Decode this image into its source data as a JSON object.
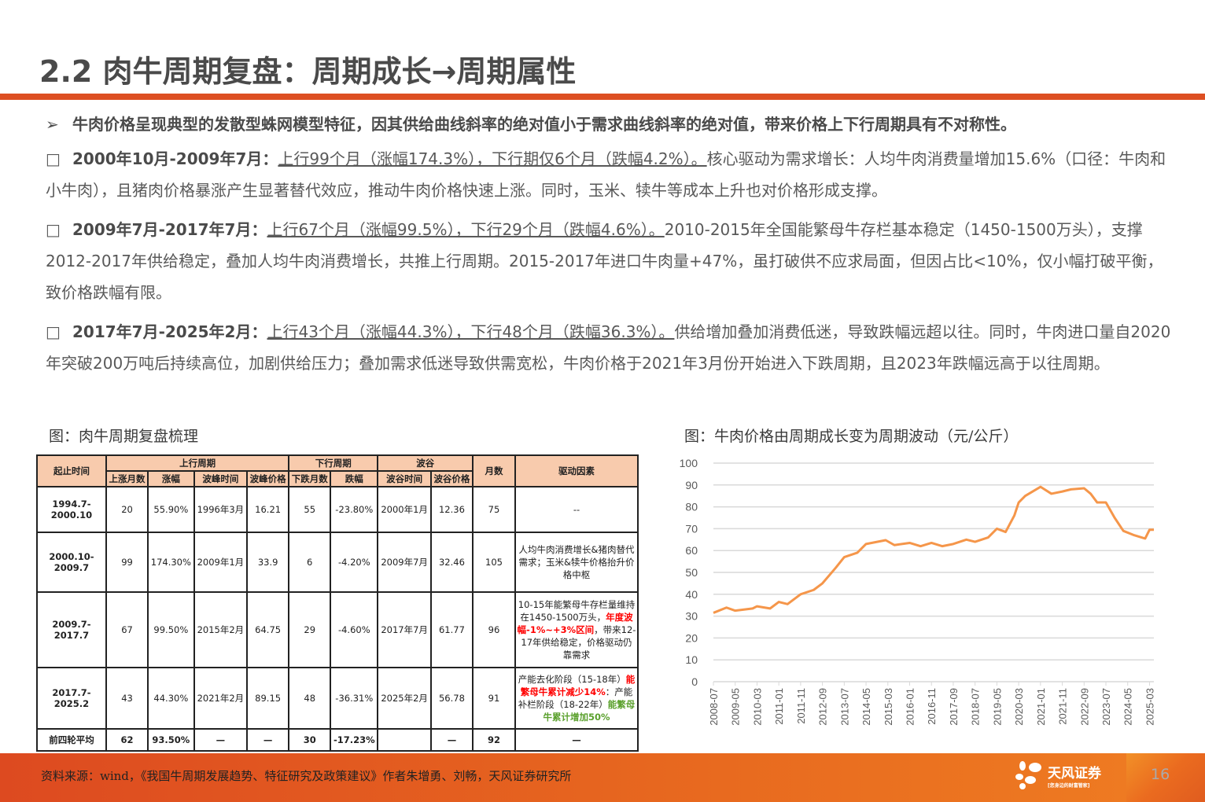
{
  "header": {
    "title": "2.2 肉牛周期复盘：周期成长→周期属性",
    "accent": "#dd4f22"
  },
  "bullets": {
    "intro": "牛肉价格呈现典型的发散型蛛网模型特征，因其供给曲线斜率的绝对值小于需求曲线斜率的绝对值，带来价格上下行周期具有不对称性。",
    "items": [
      {
        "lead": "2000年10月-2009年7月：",
        "underline": "上行99个月（涨幅174.3%），下行期仅6个月（跌幅4.2%）。",
        "rest": "核心驱动为需求增长：人均牛肉消费量增加15.6%（口径：牛肉和小牛肉），且猪肉价格暴涨产生显著替代效应，推动牛肉价格快速上涨。同时，玉米、犊牛等成本上升也对价格形成支撑。"
      },
      {
        "lead": "2009年7月-2017年7月：",
        "underline": "上行67个月（涨幅99.5%），下行29个月（跌幅4.6%）。",
        "rest": "2010-2015年全国能繁母牛存栏基本稳定（1450-1500万头），支撑2012-2017年供给稳定，叠加人均牛肉消费增长，共推上行周期。2015-2017年进口牛肉量+47%，虽打破供不应求局面，但因占比<10%，仅小幅打破平衡，致价格跌幅有限。"
      },
      {
        "lead": "2017年7月-2025年2月：",
        "underline": "上行43个月（涨幅44.3%），下行48个月（跌幅36.3%）。",
        "rest": "供给增加叠加消费低迷，导致跌幅远超以往。同时，牛肉进口量自2020年突破200万吨后持续高位，加剧供给压力；叠加需求低迷导致供需宽松，牛肉价格于2021年3月份开始进入下跌周期，且2023年跌幅远高于以往周期。"
      }
    ]
  },
  "table": {
    "caption": "图：肉牛周期复盘梳理",
    "group_headers": [
      "起止时间",
      "上行周期",
      "下行周期",
      "波谷",
      "月数",
      "驱动因素"
    ],
    "sub_headers": [
      "上涨月数",
      "涨幅",
      "波峰时间",
      "波峰价格",
      "下跌月数",
      "跌幅",
      "波谷时间",
      "波谷价格"
    ],
    "rows": [
      {
        "period": "1994.7-2000.10",
        "up_m": "20",
        "up_pct": "55.90%",
        "peak_t": "1996年3月",
        "peak_p": "16.21",
        "dn_m": "55",
        "dn_pct": "-23.80%",
        "trough_t": "2000年1月",
        "trough_p": "12.36",
        "months": "75",
        "driver": "--"
      },
      {
        "period": "2000.10-2009.7",
        "up_m": "99",
        "up_pct": "174.30%",
        "peak_t": "2009年1月",
        "peak_p": "33.9",
        "dn_m": "6",
        "dn_pct": "-4.20%",
        "trough_t": "2009年7月",
        "trough_p": "32.46",
        "months": "105",
        "driver": "人均牛肉消费增长&猪肉替代需求；玉米&犊牛价格抬升价格中枢"
      },
      {
        "period": "2009.7-2017.7",
        "up_m": "67",
        "up_pct": "99.50%",
        "peak_t": "2015年2月",
        "peak_p": "64.75",
        "dn_m": "29",
        "dn_pct": "-4.60%",
        "trough_t": "2017年7月",
        "trough_p": "61.77",
        "months": "96",
        "driver_a": "10-15年能繁母牛存栏量维持在1450-1500万头，",
        "driver_red": "年度波幅-1%~+3%区间",
        "driver_b": "，带来12-17年供给稳定，价格驱动仍靠需求"
      },
      {
        "period": "2017.7-2025.2",
        "up_m": "43",
        "up_pct": "44.30%",
        "peak_t": "2021年2月",
        "peak_p": "89.15",
        "dn_m": "48",
        "dn_pct": "-36.31%",
        "trough_t": "2025年2月",
        "trough_p": "56.78",
        "months": "91",
        "driver_a": "产能去化阶段（15-18年）",
        "driver_red": "能繁母牛累计减少14%",
        "driver_b": "：产能补栏阶段（18-22年）",
        "driver_green": "能繁母牛累计增加50%"
      },
      {
        "period": "前四轮平均",
        "up_m": "62",
        "up_pct": "93.50%",
        "peak_t": "—",
        "peak_p": "—",
        "dn_m": "30",
        "dn_pct": "-17.23%",
        "trough_t": "",
        "trough_p": "—",
        "months": "92",
        "driver": "—"
      }
    ]
  },
  "chart_data": {
    "type": "line",
    "title": "图：牛肉价格由周期成长变为周期波动（元/公斤）",
    "xlabel": "",
    "ylabel": "元/公斤",
    "ylim": [
      0,
      100
    ],
    "yticks": [
      0,
      10,
      20,
      30,
      40,
      50,
      60,
      70,
      80,
      90,
      100
    ],
    "xticks": [
      "2008-07",
      "2009-05",
      "2010-03",
      "2011-01",
      "2011-11",
      "2012-09",
      "2013-07",
      "2014-05",
      "2015-03",
      "2016-01",
      "2016-11",
      "2017-09",
      "2018-07",
      "2019-05",
      "2020-03",
      "2021-01",
      "2021-11",
      "2022-09",
      "2023-07",
      "2024-05",
      "2025-03"
    ],
    "series": [
      {
        "name": "牛肉价格",
        "color": "#f5964a",
        "x": [
          "2008-07",
          "2009-01",
          "2009-05",
          "2010-01",
          "2010-03",
          "2010-09",
          "2011-01",
          "2011-05",
          "2011-11",
          "2012-05",
          "2012-09",
          "2013-03",
          "2013-07",
          "2014-01",
          "2014-05",
          "2015-02",
          "2015-06",
          "2016-01",
          "2016-06",
          "2016-11",
          "2017-04",
          "2017-09",
          "2018-03",
          "2018-07",
          "2019-01",
          "2019-05",
          "2019-09",
          "2020-01",
          "2020-03",
          "2020-06",
          "2021-01",
          "2021-06",
          "2021-11",
          "2022-03",
          "2022-09",
          "2022-12",
          "2023-03",
          "2023-07",
          "2023-11",
          "2024-03",
          "2024-08",
          "2025-01",
          "2025-03",
          "2025-05"
        ],
        "values": [
          31.5,
          33.9,
          32.5,
          33.5,
          34.5,
          33.5,
          36.5,
          35.5,
          40,
          42,
          45,
          52,
          57,
          59,
          63,
          64.75,
          62.5,
          63.5,
          62,
          63.5,
          62,
          63,
          65,
          64,
          66,
          70,
          68.5,
          76,
          82,
          85,
          89.15,
          86,
          87,
          88,
          88.5,
          86,
          82,
          82,
          75,
          69,
          67,
          65.5,
          69.5,
          69.5
        ]
      }
    ]
  },
  "footer": {
    "source": "资料来源：wind，《我国牛周期发展趋势、特征研究及政策建议》作者朱增勇、刘畅，天风证券研究所",
    "logo": "天风证券",
    "logo_sub": "[您身边的财富管家]",
    "page": "16"
  }
}
